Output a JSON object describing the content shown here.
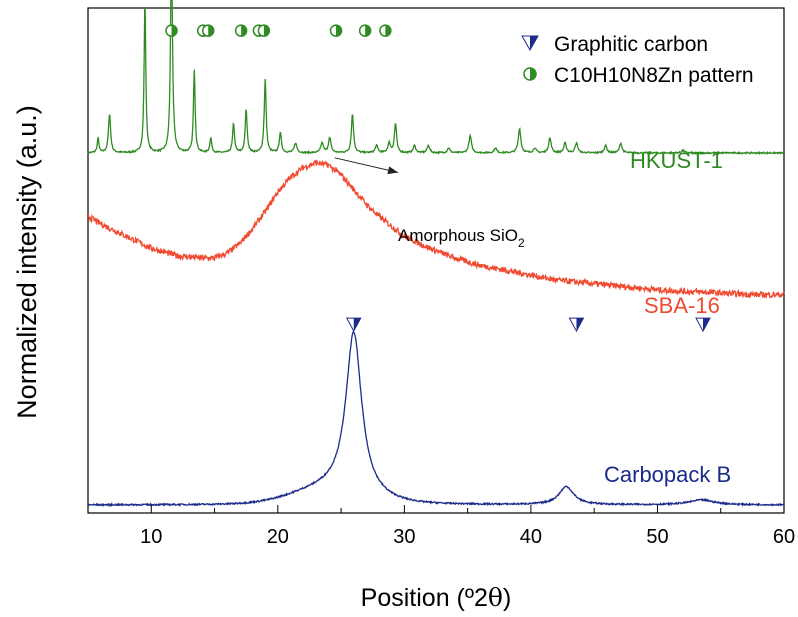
{
  "chart_data": {
    "type": "line",
    "xlabel": "Position (º2θ)",
    "xlabel_parts": {
      "text": "Position (º2",
      "symbol": "θ",
      "close": ")"
    },
    "ylabel": "Normalized intensity (a.u.)",
    "xlim": [
      5,
      60
    ],
    "xticks": [
      10,
      20,
      30,
      40,
      50,
      60
    ],
    "xtick_labels": [
      "10",
      "20",
      "30",
      "40",
      "50",
      "60"
    ],
    "y_ticks": false,
    "grid": false,
    "legend_position": "top-right",
    "legend": [
      {
        "label": "Graphitic carbon",
        "marker": "half-triangle-down",
        "color": "#1c2a8a"
      },
      {
        "label": "C10H10N8Zn pattern",
        "marker": "half-circle",
        "color": "#2e8b22"
      }
    ],
    "series": [
      {
        "name": "HKUST-1",
        "color": "#2e8b22",
        "offset": 0.72,
        "baseline": 0.0,
        "peaks": [
          [
            5.8,
            0.03,
            0.08
          ],
          [
            6.7,
            0.08,
            0.1
          ],
          [
            9.5,
            0.31,
            0.08
          ],
          [
            11.6,
            0.43,
            0.09
          ],
          [
            13.4,
            0.17,
            0.08
          ],
          [
            14.7,
            0.03,
            0.09
          ],
          [
            16.5,
            0.06,
            0.09
          ],
          [
            17.5,
            0.09,
            0.09
          ],
          [
            19.0,
            0.15,
            0.09
          ],
          [
            20.2,
            0.04,
            0.1
          ],
          [
            21.4,
            0.02,
            0.12
          ],
          [
            23.5,
            0.02,
            0.12
          ],
          [
            24.1,
            0.03,
            0.12
          ],
          [
            25.9,
            0.08,
            0.1
          ],
          [
            27.8,
            0.015,
            0.12
          ],
          [
            28.8,
            0.02,
            0.12
          ],
          [
            29.3,
            0.06,
            0.1
          ],
          [
            30.8,
            0.015,
            0.12
          ],
          [
            31.9,
            0.015,
            0.12
          ],
          [
            33.5,
            0.01,
            0.12
          ],
          [
            35.2,
            0.035,
            0.12
          ],
          [
            37.2,
            0.01,
            0.12
          ],
          [
            39.1,
            0.05,
            0.12
          ],
          [
            40.3,
            0.01,
            0.12
          ],
          [
            41.5,
            0.03,
            0.12
          ],
          [
            42.7,
            0.02,
            0.12
          ],
          [
            43.6,
            0.02,
            0.12
          ],
          [
            45.9,
            0.015,
            0.12
          ],
          [
            47.1,
            0.02,
            0.12
          ],
          [
            52.0,
            0.005,
            0.15
          ]
        ],
        "label": "HKUST-1"
      },
      {
        "name": "SBA-16",
        "color": "#f04a30",
        "x": [
          5,
          6,
          8,
          10,
          12,
          14,
          15,
          16,
          17,
          18,
          19,
          20,
          21,
          22,
          23,
          24,
          25,
          26,
          27,
          28,
          30,
          32,
          34,
          36,
          38,
          40,
          42,
          44,
          46,
          48,
          50,
          52,
          54,
          56,
          58,
          60
        ],
        "y": [
          0.59,
          0.575,
          0.55,
          0.525,
          0.51,
          0.505,
          0.505,
          0.515,
          0.535,
          0.565,
          0.6,
          0.64,
          0.67,
          0.69,
          0.7,
          0.695,
          0.675,
          0.645,
          0.615,
          0.59,
          0.55,
          0.525,
          0.505,
          0.49,
          0.48,
          0.47,
          0.46,
          0.455,
          0.45,
          0.445,
          0.44,
          0.437,
          0.435,
          0.432,
          0.43,
          0.43
        ],
        "label": "SBA-16"
      },
      {
        "name": "Carbopack B",
        "color": "#1c2a8a",
        "offset": 0.0,
        "baseline": 0.0,
        "peaks": [
          [
            26.0,
            0.33,
            0.75
          ],
          [
            42.8,
            0.037,
            0.7
          ],
          [
            53.5,
            0.01,
            1.2
          ]
        ],
        "broad": [
          [
            24.0,
            0.03,
            4.0
          ]
        ],
        "label": "Carbopack B"
      }
    ],
    "markers": {
      "circles": {
        "x": [
          11.6,
          14.1,
          14.5,
          17.1,
          18.5,
          18.9,
          24.6,
          26.9,
          28.5
        ],
        "y": 0.97
      },
      "triangles": {
        "x": [
          26.0,
          43.6,
          53.6
        ],
        "y": 0.37
      }
    },
    "annotations": [
      {
        "text": "Amorphous SiO",
        "sub": "2",
        "from": [
          24.5,
          0.71
        ],
        "to": [
          29.5,
          0.68
        ]
      }
    ]
  },
  "labels": {
    "legend_graphitic": "Graphitic carbon",
    "legend_pattern": "C10H10N8Zn pattern",
    "series_hkust": "HKUST-1",
    "series_sba": "SBA-16",
    "series_carbopack": "Carbopack B",
    "annotation_text": "Amorphous SiO",
    "annotation_sub": "2"
  }
}
